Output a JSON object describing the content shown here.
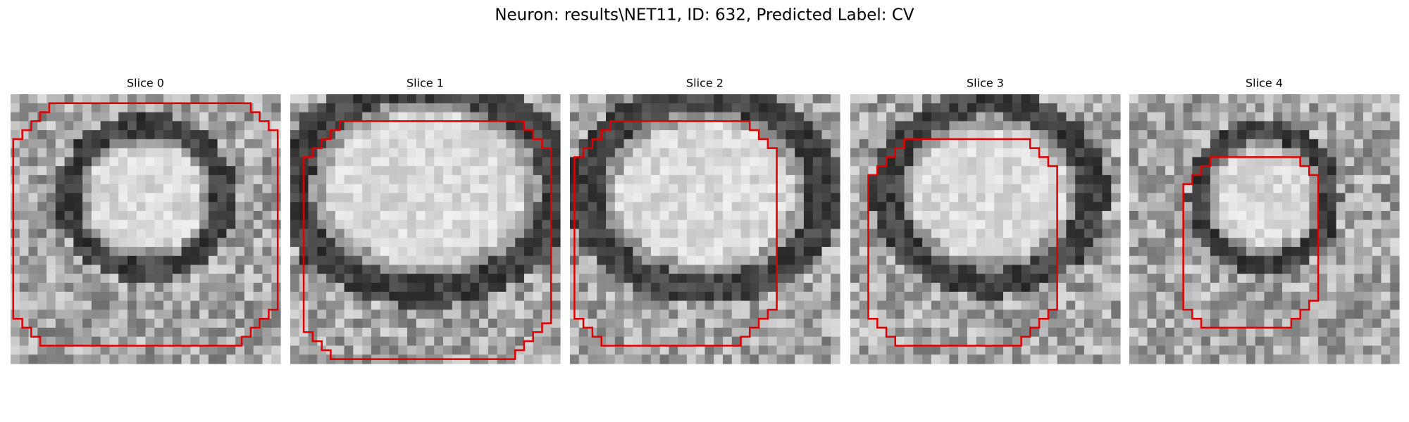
{
  "title": "Neuron: results\\NET11, ID: 632, Predicted Label: CV",
  "panels": [
    {
      "label": "Slice 0"
    },
    {
      "label": "Slice 1"
    },
    {
      "label": "Slice 2"
    },
    {
      "label": "Slice 3"
    },
    {
      "label": "Slice 4"
    }
  ]
}
